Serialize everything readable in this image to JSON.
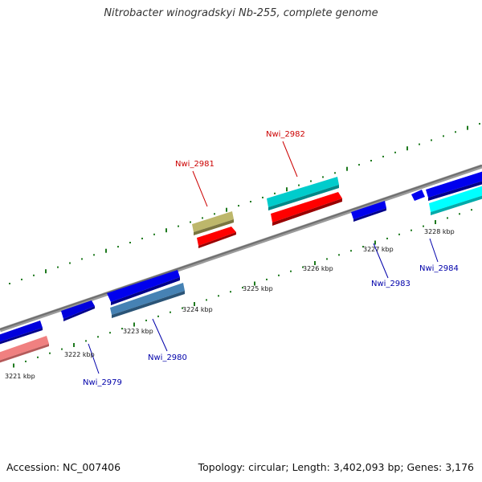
{
  "title": "Nitrobacter winogradskyi Nb-255, complete genome",
  "footer": {
    "accession": "Accession: NC_007406",
    "stats": "Topology: circular; Length: 3,402,093 bp; Genes: 3,176"
  },
  "colors": {
    "backbone": "#808080",
    "tick": "#1e7a1e",
    "label_forward": "#cc0000",
    "label_reverse": "#0000aa"
  },
  "kbp_ticks": [
    "3221 kbp",
    "3222 kbp",
    "3223 kbp",
    "3224 kbp",
    "3225 kbp",
    "3226 kbp",
    "3227 kbp",
    "3228 kbp"
  ],
  "gene_labels": [
    {
      "id": "nwi-2979",
      "text": "Nwi_2979",
      "strand": "reverse"
    },
    {
      "id": "nwi-2980",
      "text": "Nwi_2980",
      "strand": "reverse"
    },
    {
      "id": "nwi-2981",
      "text": "Nwi_2981",
      "strand": "forward"
    },
    {
      "id": "nwi-2982",
      "text": "Nwi_2982",
      "strand": "forward"
    },
    {
      "id": "nwi-2983",
      "text": "Nwi_2983",
      "strand": "reverse"
    },
    {
      "id": "nwi-2984",
      "text": "Nwi_2984",
      "strand": "reverse"
    }
  ]
}
